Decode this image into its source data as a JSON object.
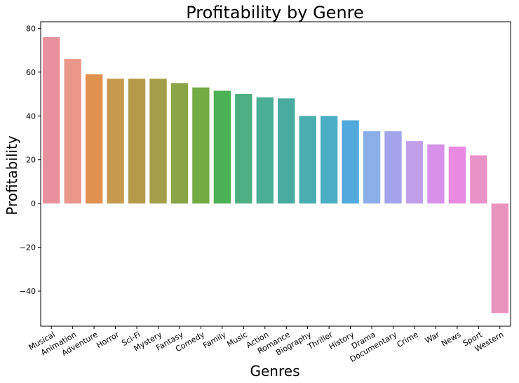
{
  "chart_data": {
    "type": "bar",
    "title": "Profitability by Genre",
    "xlabel": "Genres",
    "ylabel": "Profitability",
    "categories": [
      "Musical",
      "Animation",
      "Adventure",
      "Horror",
      "Sci-Fi",
      "Mystery",
      "Fantasy",
      "Comedy",
      "Family",
      "Music",
      "Action",
      "Romance",
      "Biography",
      "Thriller",
      "History",
      "Drama",
      "Documentary",
      "Crime",
      "War",
      "News",
      "Sport",
      "Western"
    ],
    "values": [
      76,
      66,
      59,
      57,
      57,
      57,
      55,
      53,
      51.5,
      50,
      48.5,
      48,
      40,
      40,
      38,
      33,
      33,
      28.5,
      27,
      26,
      22,
      -50
    ],
    "colors": [
      "#e8919e",
      "#e8978a",
      "#e0914e",
      "#c39a4e",
      "#b39b4a",
      "#a39f48",
      "#8ba447",
      "#75ab44",
      "#4bb155",
      "#4baf82",
      "#4aae95",
      "#49ab9f",
      "#4aadb0",
      "#4baec4",
      "#51aadb",
      "#8aaee8",
      "#a4a4ec",
      "#c09fe8",
      "#d891e8",
      "#e88be0",
      "#e892c8",
      "#e894bc"
    ],
    "ylim": [
      -56,
      83
    ],
    "yticks": [
      -40,
      -20,
      0,
      20,
      40,
      60,
      80
    ],
    "ytick_labels": [
      "−40",
      "−20",
      "0",
      "20",
      "40",
      "60",
      "80"
    ],
    "grid": false
  }
}
